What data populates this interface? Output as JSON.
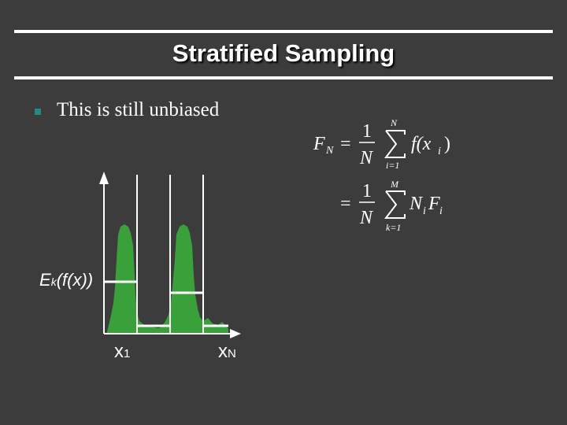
{
  "slide": {
    "title": "Stratified Sampling",
    "bullets": [
      {
        "text": "This is still unbiased"
      }
    ],
    "formula": {
      "line1": {
        "lhs": "F",
        "lhs_sub": "N",
        "eq": "=",
        "num": "1",
        "den": "N",
        "sum_top": "N",
        "sum_bottom": "i=1",
        "term": "f(x",
        "term_sub": "i",
        "term_end": ")"
      },
      "line2": {
        "eq": "=",
        "num": "1",
        "den": "N",
        "sum_top": "M",
        "sum_bottom": "k=1",
        "n": "N",
        "n_sub": "i",
        "f": "F",
        "f_sub": "i"
      }
    },
    "plot": {
      "ek_label": "E",
      "ek_sub": "k",
      "ek_rest": "(f(x))",
      "x_first": "x",
      "x_first_sub": "1",
      "x_last": "x",
      "x_last_sub": "N",
      "fill_color": "#3aa13a"
    }
  }
}
